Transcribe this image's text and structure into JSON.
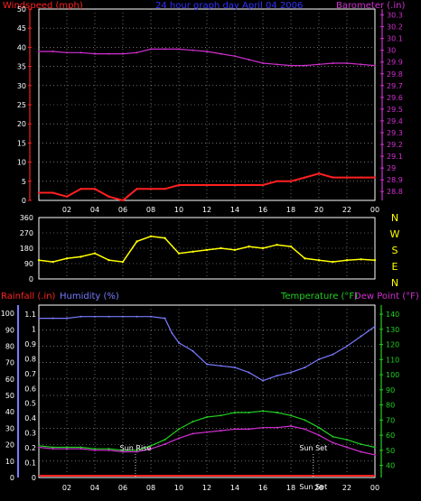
{
  "colors": {
    "windspeed": "#ff2020",
    "gust": "#ff2020",
    "avgwind": "#ffffff",
    "barometer": "#d030d0",
    "direction": "#ffff00",
    "rainfall": "#ff2020",
    "humidity": "#7a7aff",
    "temperature": "#20d020",
    "dewpoint": "#d030d0",
    "grid_dot": "#b0b0b0",
    "axis_text": "#ffffff"
  },
  "chart_data": [
    {
      "type": "line",
      "title": "24 hour graph day April 04 2006",
      "left_axis_label": "Windspeed (mph)",
      "right_axis_label": "Barometer (.in)",
      "x_ticks": [
        "02",
        "04",
        "06",
        "08",
        "10",
        "12",
        "14",
        "16",
        "18",
        "20",
        "22",
        "00"
      ],
      "y_left_ticks": [
        "50",
        "45",
        "40",
        "35",
        "30",
        "25",
        "20",
        "15",
        "10",
        "5",
        "0"
      ],
      "y_left_range": [
        0,
        50
      ],
      "y_right_ticks": [
        "30.3",
        "30.2",
        "30.1",
        "30",
        "29.9",
        "29.8",
        "29.7",
        "29.6",
        "29.5",
        "29.4",
        "29.3",
        "29.2",
        "29.1",
        "29",
        "28.9",
        "28.8"
      ],
      "y_right_range": [
        28.725,
        30.35
      ],
      "grid": true,
      "series": [
        {
          "name": "Windspeed",
          "axis": "left",
          "x": [
            0,
            1,
            2,
            3,
            4,
            5,
            6,
            7,
            8,
            9,
            10,
            11,
            12,
            13,
            14,
            15,
            16,
            17,
            18,
            19,
            20,
            21,
            22,
            23,
            24
          ],
          "values": [
            2,
            2,
            1,
            3,
            3,
            1,
            0,
            3,
            3,
            3,
            4,
            4,
            4,
            4,
            4,
            4,
            4,
            5,
            5,
            6,
            7,
            6,
            6,
            6,
            6
          ]
        },
        {
          "name": "Barometer",
          "axis": "right",
          "x": [
            0,
            1,
            2,
            3,
            4,
            5,
            6,
            7,
            8,
            9,
            10,
            11,
            12,
            13,
            14,
            15,
            16,
            17,
            18,
            19,
            20,
            21,
            22,
            23,
            24
          ],
          "values": [
            29.99,
            29.99,
            29.98,
            29.98,
            29.97,
            29.97,
            29.97,
            29.98,
            30.01,
            30.01,
            30.01,
            30.0,
            29.99,
            29.97,
            29.95,
            29.92,
            29.89,
            29.88,
            29.87,
            29.87,
            29.88,
            29.89,
            29.89,
            29.88,
            29.87
          ]
        }
      ]
    },
    {
      "type": "line",
      "y_left_ticks": [
        "360",
        "270",
        "180",
        "90",
        "0"
      ],
      "y_left_range": [
        0,
        360
      ],
      "right_labels": [
        "N",
        "W",
        "S",
        "E",
        "N"
      ],
      "grid": true,
      "series": [
        {
          "name": "Wind Direction",
          "x": [
            0,
            1,
            2,
            3,
            4,
            5,
            6,
            7,
            8,
            9,
            10,
            11,
            12,
            13,
            14,
            15,
            16,
            17,
            18,
            19,
            20,
            21,
            22,
            23,
            24
          ],
          "values": [
            110,
            100,
            120,
            130,
            150,
            110,
            100,
            220,
            250,
            240,
            150,
            160,
            170,
            180,
            170,
            190,
            180,
            200,
            190,
            120,
            110,
            100,
            110,
            115,
            110
          ]
        }
      ]
    },
    {
      "type": "line",
      "left_axis_label": "Rainfall (.in)",
      "humidity_label": "Humidity (%)",
      "right_axis_label": "Temperature (°F)",
      "dewpoint_label": "Dew Point (°F)",
      "x_ticks": [
        "02",
        "04",
        "06",
        "08",
        "10",
        "12",
        "14",
        "16",
        "18",
        "20",
        "22",
        "00"
      ],
      "y_rain_ticks": [
        "1.1",
        "1",
        "0.9",
        "0.8",
        "0.7",
        "0.6",
        "0.5",
        "0.4",
        "0.3",
        "0.2",
        "0.1",
        "0"
      ],
      "y_humidity_ticks": [
        "100",
        "90",
        "80",
        "70",
        "60",
        "50",
        "40",
        "30",
        "20",
        "10",
        "0"
      ],
      "y_humidity_range": [
        0,
        105
      ],
      "y_temp_ticks": [
        "140",
        "130",
        "120",
        "110",
        "100",
        "90",
        "80",
        "70",
        "60",
        "50",
        "40"
      ],
      "y_temp_range": [
        32,
        146
      ],
      "sun_rise_label": "Sun Rise",
      "sun_set_label": "Sun Set",
      "sun_set_time_label": "Sun Set",
      "sun_rise_hour": 6.9,
      "sun_set_hour": 19.6,
      "grid": true,
      "series": [
        {
          "name": "Humidity",
          "axis": "humidity",
          "x": [
            0,
            1,
            2,
            3,
            4,
            5,
            6,
            7,
            8,
            9,
            9.5,
            10,
            11,
            12,
            13,
            14,
            15,
            16,
            17,
            18,
            19,
            20,
            21,
            22,
            23,
            24
          ],
          "values": [
            97,
            97,
            97,
            98,
            98,
            98,
            98,
            98,
            98,
            97,
            88,
            82,
            77,
            69,
            68,
            67,
            64,
            59,
            62,
            64,
            67,
            72,
            75,
            80,
            86,
            92
          ]
        },
        {
          "name": "Temperature",
          "axis": "temp",
          "x": [
            0,
            1,
            2,
            3,
            4,
            5,
            6,
            7,
            8,
            9,
            10,
            11,
            12,
            13,
            14,
            15,
            16,
            17,
            18,
            19,
            20,
            21,
            22,
            23,
            24
          ],
          "values": [
            53,
            52,
            52,
            52,
            51,
            51,
            50,
            50,
            53,
            57,
            64,
            69,
            72,
            73,
            75,
            75,
            76,
            75,
            73,
            70,
            65,
            59,
            57,
            54,
            52
          ]
        },
        {
          "name": "Dew Point",
          "axis": "temp",
          "x": [
            0,
            1,
            2,
            3,
            4,
            5,
            6,
            7,
            8,
            9,
            10,
            11,
            12,
            13,
            14,
            15,
            16,
            17,
            18,
            19,
            20,
            21,
            22,
            23,
            24
          ],
          "values": [
            52,
            51,
            51,
            51,
            50,
            50,
            49,
            49,
            51,
            54,
            58,
            61,
            62,
            63,
            64,
            64,
            65,
            65,
            66,
            64,
            60,
            55,
            52,
            49,
            47
          ]
        },
        {
          "name": "Rainfall",
          "axis": "rain",
          "x": [
            0,
            24
          ],
          "values": [
            0,
            0
          ]
        }
      ]
    }
  ]
}
